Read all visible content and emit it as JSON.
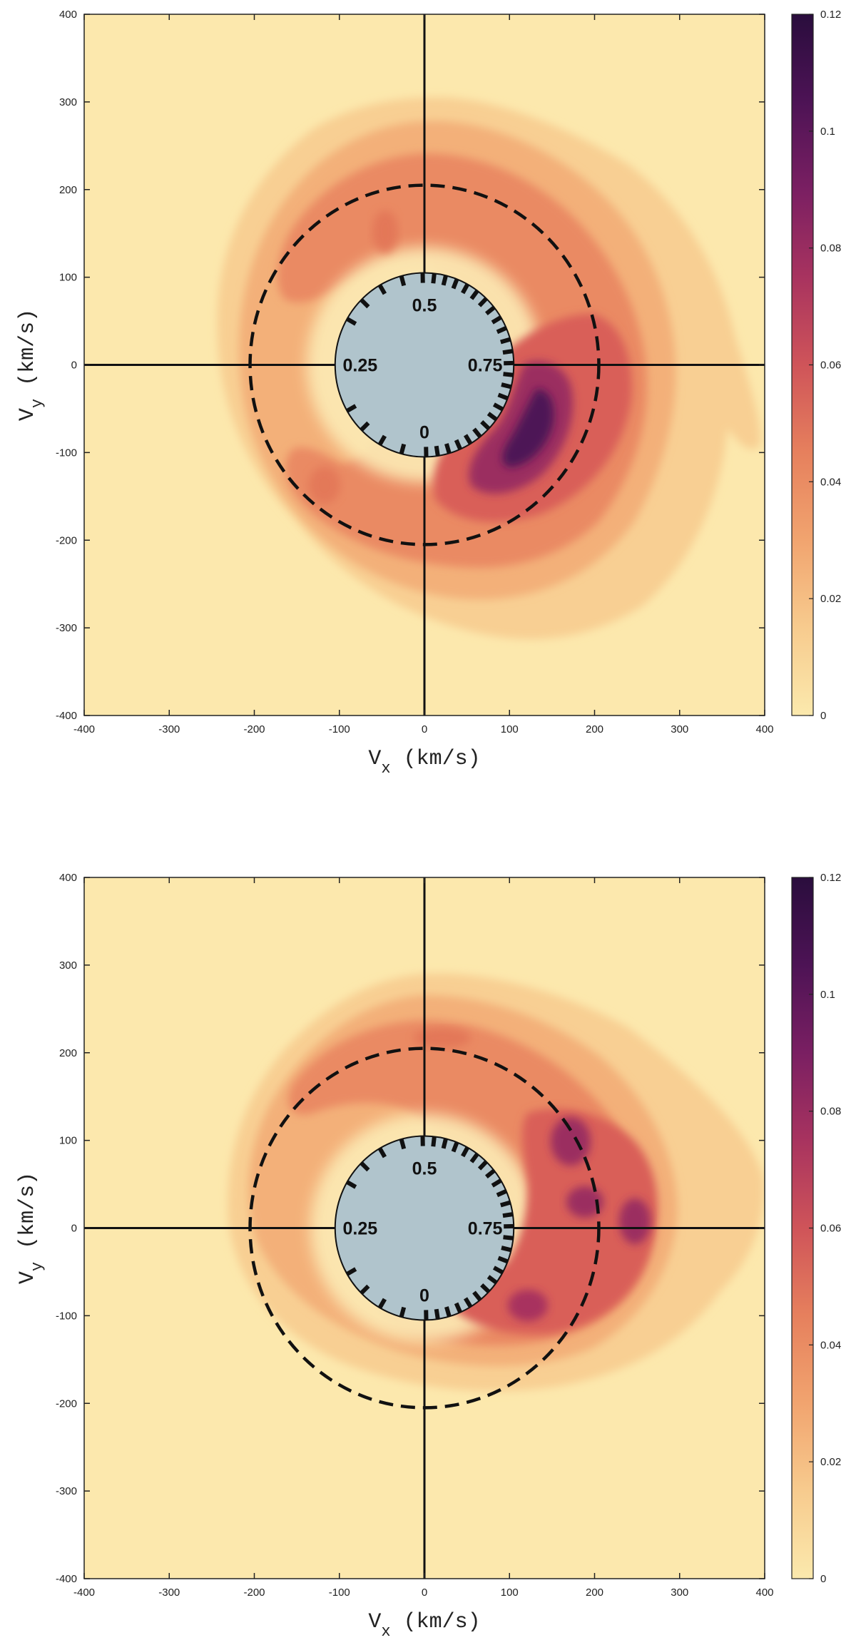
{
  "chart_data": [
    {
      "type": "heatmap",
      "panel": "top",
      "xlabel_main": "V",
      "xlabel_sub": "x",
      "xlabel_units": "(km/s)",
      "ylabel_main": "V",
      "ylabel_sub": "y",
      "ylabel_units": "(km/s)",
      "xlim": [
        -400,
        400
      ],
      "ylim": [
        -400,
        400
      ],
      "x_ticks": [
        "-400",
        "-300",
        "-200",
        "-100",
        "0",
        "100",
        "200",
        "300",
        "400"
      ],
      "y_ticks": [
        "-400",
        "-300",
        "-200",
        "-100",
        "0",
        "100",
        "200",
        "300",
        "400"
      ],
      "colorbar": {
        "min": 0,
        "max": 0.12,
        "ticks": [
          "0",
          "0.02",
          "0.04",
          "0.06",
          "0.08",
          "0.1",
          "0.12"
        ],
        "colors": [
          "#fbe9ad",
          "#f7cb8e",
          "#f1a46f",
          "#e6805d",
          "#cf5459",
          "#a8335f",
          "#7a1f62",
          "#4d1355",
          "#2a0d3d"
        ]
      },
      "phase_disk": {
        "radius_kms": 105,
        "labels": [
          "0",
          "0.25",
          "0.5",
          "0.75"
        ],
        "color": "#b0c4cc"
      },
      "dashed_circle_radius_kms": 205,
      "density_summary": "ring of density between about 100 and 320 km/s radius; strongest concentration (max near 0.1) near Vx 100-180, Vy -50 to -150"
    },
    {
      "type": "heatmap",
      "panel": "bottom",
      "xlabel_main": "V",
      "xlabel_sub": "x",
      "xlabel_units": "(km/s)",
      "ylabel_main": "V",
      "ylabel_sub": "y",
      "ylabel_units": "(km/s)",
      "xlim": [
        -400,
        400
      ],
      "ylim": [
        -400,
        400
      ],
      "x_ticks": [
        "-400",
        "-300",
        "-200",
        "-100",
        "0",
        "100",
        "200",
        "300",
        "400"
      ],
      "y_ticks": [
        "-400",
        "-300",
        "-200",
        "-100",
        "0",
        "100",
        "200",
        "300",
        "400"
      ],
      "colorbar": {
        "min": 0,
        "max": 0.12,
        "ticks": [
          "0",
          "0.02",
          "0.04",
          "0.06",
          "0.08",
          "0.1",
          "0.12"
        ],
        "colors": [
          "#fbe9ad",
          "#f7cb8e",
          "#f1a46f",
          "#e6805d",
          "#cf5459",
          "#a8335f",
          "#7a1f62",
          "#4d1355",
          "#2a0d3d"
        ]
      },
      "phase_disk": {
        "radius_kms": 105,
        "labels": [
          "0",
          "0.25",
          "0.5",
          "0.75"
        ],
        "color": "#b0c4cc"
      },
      "dashed_circle_radius_kms": 205,
      "density_summary": "ring of density between about 100 and 290 km/s radius; strongest concentrations (near 0.08-0.09) around Vx 170-250, Vy -50 to 50"
    }
  ]
}
